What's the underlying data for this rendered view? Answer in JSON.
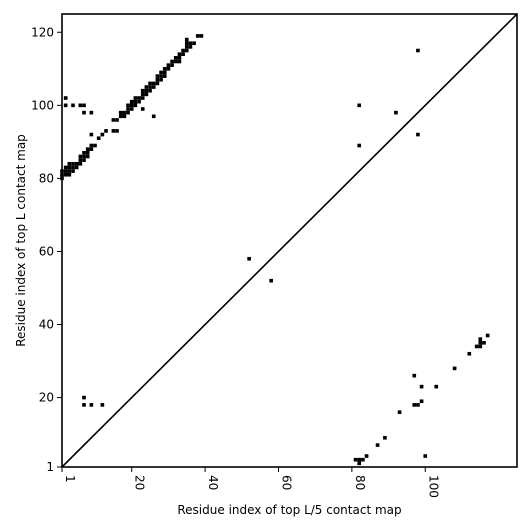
{
  "chart_data": {
    "type": "scatter",
    "xlabel": "Residue index of top L/5 contact map",
    "ylabel": "Residue index of top L contact map",
    "xlim": [
      1,
      125
    ],
    "ylim": [
      1,
      125
    ],
    "x_ticks": [
      1,
      20,
      40,
      60,
      80,
      100
    ],
    "y_ticks": [
      1,
      20,
      40,
      60,
      80,
      100,
      120
    ],
    "x_tick_rotation": "vertical",
    "grid": false,
    "legend": "none",
    "diagonal": true,
    "marker": "square",
    "colors": {
      "points": "#000000",
      "frame": "#000000",
      "background": "#ffffff"
    },
    "series": [
      {
        "points": [
          [
            1,
            80
          ],
          [
            1,
            81
          ],
          [
            1,
            82
          ],
          [
            2,
            81
          ],
          [
            2,
            82
          ],
          [
            2,
            83
          ],
          [
            3,
            81
          ],
          [
            3,
            82
          ],
          [
            3,
            83
          ],
          [
            3,
            84
          ],
          [
            4,
            82
          ],
          [
            4,
            83
          ],
          [
            4,
            84
          ],
          [
            5,
            83
          ],
          [
            5,
            84
          ],
          [
            6,
            84
          ],
          [
            6,
            85
          ],
          [
            6,
            86
          ],
          [
            7,
            85
          ],
          [
            7,
            86
          ],
          [
            7,
            87
          ],
          [
            8,
            86
          ],
          [
            8,
            87
          ],
          [
            8,
            88
          ],
          [
            9,
            88
          ],
          [
            9,
            89
          ],
          [
            10,
            89
          ],
          [
            2,
            100
          ],
          [
            2,
            102
          ],
          [
            4,
            100
          ],
          [
            6,
            100
          ],
          [
            7,
            98
          ],
          [
            7,
            100
          ],
          [
            9,
            98
          ],
          [
            9,
            92
          ],
          [
            11,
            91
          ],
          [
            12,
            92
          ],
          [
            13,
            93
          ],
          [
            15,
            93
          ],
          [
            15,
            96
          ],
          [
            16,
            93
          ],
          [
            16,
            96
          ],
          [
            17,
            97
          ],
          [
            17,
            98
          ],
          [
            18,
            97
          ],
          [
            18,
            98
          ],
          [
            19,
            98
          ],
          [
            19,
            99
          ],
          [
            19,
            100
          ],
          [
            20,
            99
          ],
          [
            20,
            100
          ],
          [
            20,
            101
          ],
          [
            21,
            100
          ],
          [
            21,
            101
          ],
          [
            21,
            102
          ],
          [
            22,
            101
          ],
          [
            22,
            102
          ],
          [
            23,
            102
          ],
          [
            23,
            103
          ],
          [
            23,
            104
          ],
          [
            24,
            103
          ],
          [
            24,
            104
          ],
          [
            24,
            105
          ],
          [
            25,
            104
          ],
          [
            25,
            105
          ],
          [
            25,
            106
          ],
          [
            26,
            105
          ],
          [
            26,
            106
          ],
          [
            27,
            106
          ],
          [
            27,
            107
          ],
          [
            27,
            108
          ],
          [
            28,
            107
          ],
          [
            28,
            108
          ],
          [
            28,
            109
          ],
          [
            29,
            108
          ],
          [
            29,
            109
          ],
          [
            29,
            110
          ],
          [
            30,
            110
          ],
          [
            30,
            111
          ],
          [
            31,
            111
          ],
          [
            31,
            112
          ],
          [
            32,
            112
          ],
          [
            32,
            113
          ],
          [
            33,
            112
          ],
          [
            33,
            113
          ],
          [
            33,
            114
          ],
          [
            34,
            114
          ],
          [
            34,
            115
          ],
          [
            35,
            115
          ],
          [
            35,
            116
          ],
          [
            35,
            117
          ],
          [
            35,
            118
          ],
          [
            36,
            116
          ],
          [
            36,
            117
          ],
          [
            37,
            117
          ],
          [
            38,
            119
          ],
          [
            39,
            119
          ],
          [
            23,
            99
          ],
          [
            26,
            97
          ],
          [
            7,
            20
          ],
          [
            7,
            18
          ],
          [
            9,
            18
          ],
          [
            12,
            18
          ],
          [
            52,
            58
          ],
          [
            58,
            52
          ],
          [
            82,
            100
          ],
          [
            82,
            89
          ],
          [
            92,
            98
          ],
          [
            98,
            115
          ],
          [
            98,
            92
          ],
          [
            81,
            3
          ],
          [
            82,
            2
          ],
          [
            82,
            3
          ],
          [
            83,
            3
          ],
          [
            84,
            4
          ],
          [
            87,
            7
          ],
          [
            89,
            9
          ],
          [
            93,
            16
          ],
          [
            97,
            26
          ],
          [
            97,
            18
          ],
          [
            98,
            18
          ],
          [
            99,
            19
          ],
          [
            99,
            23
          ],
          [
            100,
            4
          ],
          [
            103,
            23
          ],
          [
            108,
            28
          ],
          [
            112,
            32
          ],
          [
            114,
            34
          ],
          [
            115,
            34
          ],
          [
            115,
            35
          ],
          [
            115,
            36
          ],
          [
            116,
            35
          ],
          [
            117,
            37
          ]
        ]
      }
    ]
  }
}
